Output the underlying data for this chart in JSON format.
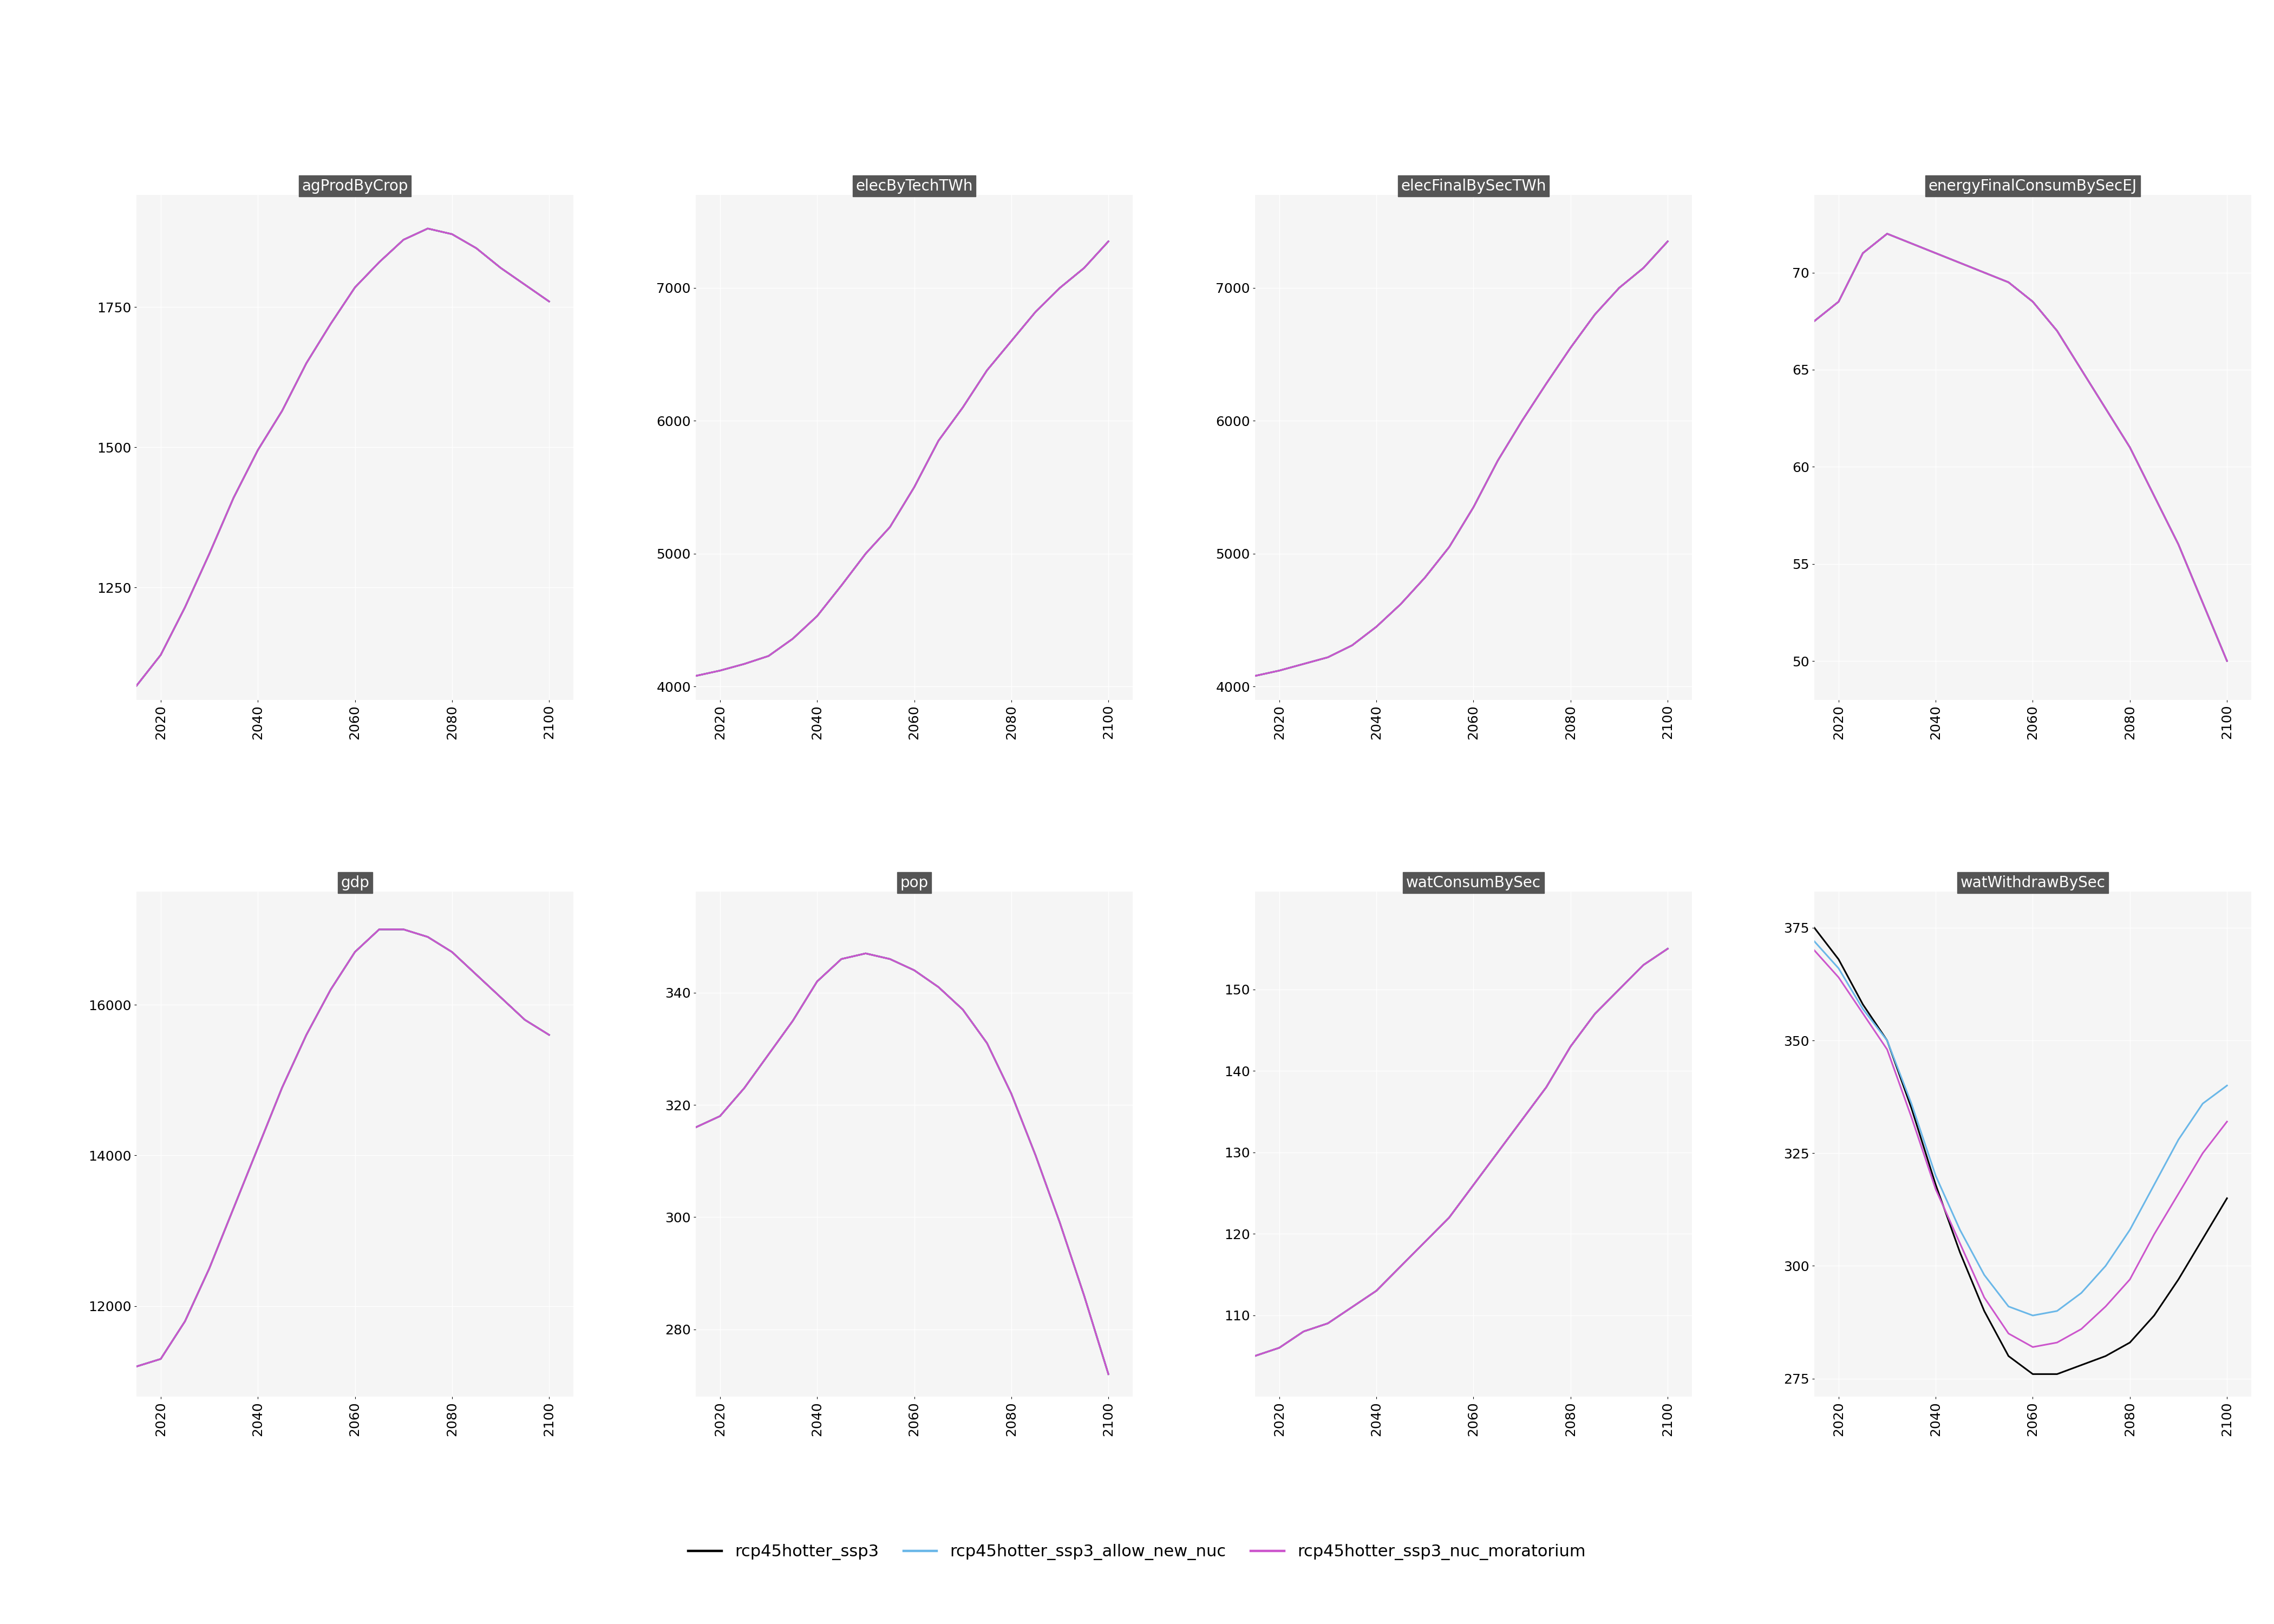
{
  "years": [
    2015,
    2020,
    2025,
    2030,
    2035,
    2040,
    2045,
    2050,
    2055,
    2060,
    2065,
    2070,
    2075,
    2080,
    2085,
    2090,
    2095,
    2100
  ],
  "panels": [
    {
      "title": "agProdByCrop",
      "ylim": [
        1050,
        1950
      ],
      "yticks": [
        1250,
        1500,
        1750
      ],
      "series": {
        "ssp3": [
          1075,
          1130,
          1215,
          1310,
          1410,
          1495,
          1565,
          1650,
          1720,
          1785,
          1830,
          1870,
          1890,
          1880,
          1855,
          1820,
          1790,
          1760
        ],
        "allow_nuc": [
          1075,
          1130,
          1215,
          1310,
          1410,
          1495,
          1565,
          1650,
          1720,
          1785,
          1830,
          1870,
          1890,
          1880,
          1855,
          1820,
          1790,
          1760
        ],
        "moratorium": [
          1075,
          1130,
          1215,
          1310,
          1410,
          1495,
          1565,
          1650,
          1720,
          1785,
          1830,
          1870,
          1890,
          1880,
          1855,
          1820,
          1790,
          1760
        ]
      }
    },
    {
      "title": "elecByTechTWh",
      "ylim": [
        3900,
        7700
      ],
      "yticks": [
        4000,
        5000,
        6000,
        7000
      ],
      "series": {
        "ssp3": [
          4080,
          4120,
          4170,
          4230,
          4360,
          4530,
          4760,
          5000,
          5200,
          5500,
          5850,
          6100,
          6380,
          6600,
          6820,
          7000,
          7150,
          7350
        ],
        "allow_nuc": [
          4080,
          4120,
          4170,
          4230,
          4360,
          4530,
          4760,
          5000,
          5200,
          5500,
          5850,
          6100,
          6380,
          6600,
          6820,
          7000,
          7150,
          7350
        ],
        "moratorium": [
          4080,
          4120,
          4170,
          4230,
          4360,
          4530,
          4760,
          5000,
          5200,
          5500,
          5850,
          6100,
          6380,
          6600,
          6820,
          7000,
          7150,
          7350
        ]
      }
    },
    {
      "title": "elecFinalBySecTWh",
      "ylim": [
        3900,
        7700
      ],
      "yticks": [
        4000,
        5000,
        6000,
        7000
      ],
      "series": {
        "ssp3": [
          4080,
          4120,
          4170,
          4220,
          4310,
          4450,
          4620,
          4820,
          5050,
          5350,
          5700,
          6000,
          6280,
          6550,
          6800,
          7000,
          7150,
          7350
        ],
        "allow_nuc": [
          4080,
          4120,
          4170,
          4220,
          4310,
          4450,
          4620,
          4820,
          5050,
          5350,
          5700,
          6000,
          6280,
          6550,
          6800,
          7000,
          7150,
          7350
        ],
        "moratorium": [
          4080,
          4120,
          4170,
          4220,
          4310,
          4450,
          4620,
          4820,
          5050,
          5350,
          5700,
          6000,
          6280,
          6550,
          6800,
          7000,
          7150,
          7350
        ]
      }
    },
    {
      "title": "energyFinalConsumBySecEJ",
      "ylim": [
        48,
        74
      ],
      "yticks": [
        50,
        55,
        60,
        65,
        70
      ],
      "series": {
        "ssp3": [
          67.5,
          68.5,
          71.0,
          72.0,
          71.5,
          71.0,
          70.5,
          70.0,
          69.5,
          68.5,
          67.0,
          65.0,
          63.0,
          61.0,
          58.5,
          56.0,
          53.0,
          50.0
        ],
        "allow_nuc": [
          67.5,
          68.5,
          71.0,
          72.0,
          71.5,
          71.0,
          70.5,
          70.0,
          69.5,
          68.5,
          67.0,
          65.0,
          63.0,
          61.0,
          58.5,
          56.0,
          53.0,
          50.0
        ],
        "moratorium": [
          67.5,
          68.5,
          71.0,
          72.0,
          71.5,
          71.0,
          70.5,
          70.0,
          69.5,
          68.5,
          67.0,
          65.0,
          63.0,
          61.0,
          58.5,
          56.0,
          53.0,
          50.0
        ]
      }
    },
    {
      "title": "gdp",
      "ylim": [
        10800,
        17500
      ],
      "yticks": [
        12000,
        14000,
        16000
      ],
      "series": {
        "ssp3": [
          11200,
          11300,
          11800,
          12500,
          13300,
          14100,
          14900,
          15600,
          16200,
          16700,
          17000,
          17000,
          16900,
          16700,
          16400,
          16100,
          15800,
          15600
        ],
        "allow_nuc": [
          11200,
          11300,
          11800,
          12500,
          13300,
          14100,
          14900,
          15600,
          16200,
          16700,
          17000,
          17000,
          16900,
          16700,
          16400,
          16100,
          15800,
          15600
        ],
        "moratorium": [
          11200,
          11300,
          11800,
          12500,
          13300,
          14100,
          14900,
          15600,
          16200,
          16700,
          17000,
          17000,
          16900,
          16700,
          16400,
          16100,
          15800,
          15600
        ]
      }
    },
    {
      "title": "pop",
      "ylim": [
        268,
        358
      ],
      "yticks": [
        280,
        300,
        320,
        340
      ],
      "series": {
        "ssp3": [
          316,
          318,
          323,
          329,
          335,
          342,
          346,
          347,
          346,
          344,
          341,
          337,
          331,
          322,
          311,
          299,
          286,
          272
        ],
        "allow_nuc": [
          316,
          318,
          323,
          329,
          335,
          342,
          346,
          347,
          346,
          344,
          341,
          337,
          331,
          322,
          311,
          299,
          286,
          272
        ],
        "moratorium": [
          316,
          318,
          323,
          329,
          335,
          342,
          346,
          347,
          346,
          344,
          341,
          337,
          331,
          322,
          311,
          299,
          286,
          272
        ]
      }
    },
    {
      "title": "watConsumBySec",
      "ylim": [
        100,
        162
      ],
      "yticks": [
        110,
        120,
        130,
        140,
        150
      ],
      "series": {
        "ssp3": [
          105,
          106,
          108,
          109,
          111,
          113,
          116,
          119,
          122,
          126,
          130,
          134,
          138,
          143,
          147,
          150,
          153,
          155
        ],
        "allow_nuc": [
          105,
          106,
          108,
          109,
          111,
          113,
          116,
          119,
          122,
          126,
          130,
          134,
          138,
          143,
          147,
          150,
          153,
          155
        ],
        "moratorium": [
          105,
          106,
          108,
          109,
          111,
          113,
          116,
          119,
          122,
          126,
          130,
          134,
          138,
          143,
          147,
          150,
          153,
          155
        ]
      }
    },
    {
      "title": "watWithdrawBySec",
      "ylim": [
        271,
        383
      ],
      "yticks": [
        275,
        300,
        325,
        350,
        375
      ],
      "series": {
        "ssp3": [
          375,
          368,
          358,
          350,
          335,
          318,
          303,
          290,
          280,
          276,
          276,
          278,
          280,
          283,
          289,
          297,
          306,
          315
        ],
        "allow_nuc": [
          372,
          366,
          357,
          350,
          336,
          320,
          308,
          298,
          291,
          289,
          290,
          294,
          300,
          308,
          318,
          328,
          336,
          340
        ],
        "moratorium": [
          370,
          364,
          356,
          348,
          333,
          317,
          305,
          293,
          285,
          282,
          283,
          286,
          291,
          297,
          307,
          316,
          325,
          332
        ]
      }
    }
  ],
  "colors": {
    "ssp3": "#000000",
    "allow_nuc": "#6ab7e8",
    "moratorium": "#cc55cc"
  },
  "legend_labels": {
    "ssp3": "rcp45hotter_ssp3",
    "allow_nuc": "rcp45hotter_ssp3_allow_new_nuc",
    "moratorium": "rcp45hotter_ssp3_nuc_moratorium"
  },
  "background_color": "#ffffff",
  "panel_bg_color": "#f5f5f5",
  "grid_color": "#ffffff",
  "title_bg_color": "#555555",
  "title_text_color": "#ffffff",
  "xticks": [
    2020,
    2040,
    2060,
    2080,
    2100
  ],
  "linewidth": 2.2,
  "title_fontsize": 20,
  "tick_fontsize": 18,
  "legend_fontsize": 22
}
